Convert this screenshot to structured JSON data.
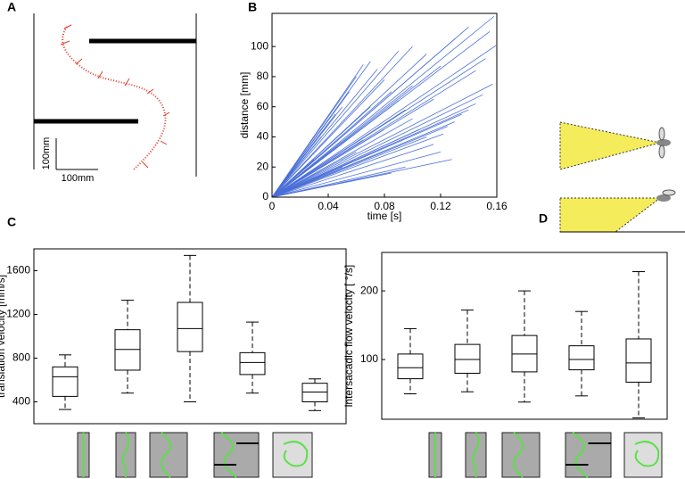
{
  "figure": {
    "panel_a": {
      "label": "A",
      "scale_y": "100mm",
      "scale_x": "100mm"
    }
  },
  "chart_data": [
    {
      "type": "line",
      "panel": "B",
      "x_label": "time [s]",
      "y_label": "distance [mm]",
      "color": "#4a6fd8",
      "xlim": [
        0,
        0.16
      ],
      "xticks": [
        0,
        0.04,
        0.08,
        0.12,
        0.16
      ],
      "ylim": [
        0,
        122
      ],
      "yticks": [
        0,
        20,
        40,
        60,
        80,
        100
      ],
      "series": [
        {
          "x": [
            0,
            0.158
          ],
          "values": [
            0,
            120
          ]
        },
        {
          "x": [
            0,
            0.155
          ],
          "values": [
            0,
            110
          ]
        },
        {
          "x": [
            0,
            0.16
          ],
          "values": [
            0,
            101
          ]
        },
        {
          "x": [
            0,
            0.152
          ],
          "values": [
            0,
            92
          ]
        },
        {
          "x": [
            0,
            0.157
          ],
          "values": [
            0,
            75
          ]
        },
        {
          "x": [
            0,
            0.15
          ],
          "values": [
            0,
            68
          ]
        },
        {
          "x": [
            0,
            0.145
          ],
          "values": [
            0,
            62
          ]
        },
        {
          "x": [
            0,
            0.14
          ],
          "values": [
            0,
            58
          ]
        },
        {
          "x": [
            0,
            0.135
          ],
          "values": [
            0,
            55
          ]
        },
        {
          "x": [
            0,
            0.13
          ],
          "values": [
            0,
            50
          ]
        },
        {
          "x": [
            0,
            0.125
          ],
          "values": [
            0,
            47
          ]
        },
        {
          "x": [
            0,
            0.122
          ],
          "values": [
            0,
            42
          ]
        },
        {
          "x": [
            0,
            0.128
          ],
          "values": [
            0,
            25
          ]
        },
        {
          "x": [
            0,
            0.12
          ],
          "values": [
            0,
            30
          ]
        },
        {
          "x": [
            0,
            0.115
          ],
          "values": [
            0,
            35
          ]
        },
        {
          "x": [
            0,
            0.11
          ],
          "values": [
            0,
            40
          ]
        },
        {
          "x": [
            0,
            0.105
          ],
          "values": [
            0,
            45
          ]
        },
        {
          "x": [
            0,
            0.1
          ],
          "values": [
            0,
            52
          ]
        },
        {
          "x": [
            0,
            0.095
          ],
          "values": [
            0,
            58
          ]
        },
        {
          "x": [
            0,
            0.09
          ],
          "values": [
            0,
            64
          ]
        },
        {
          "x": [
            0,
            0.085
          ],
          "values": [
            0,
            70
          ]
        },
        {
          "x": [
            0,
            0.08
          ],
          "values": [
            0,
            78
          ]
        },
        {
          "x": [
            0,
            0.075
          ],
          "values": [
            0,
            85
          ]
        },
        {
          "x": [
            0,
            0.07
          ],
          "values": [
            0,
            90
          ]
        },
        {
          "x": [
            0,
            0.065
          ],
          "values": [
            0,
            88
          ]
        },
        {
          "x": [
            0,
            0.06
          ],
          "values": [
            0,
            80
          ]
        },
        {
          "x": [
            0,
            0.055
          ],
          "values": [
            0,
            70
          ]
        },
        {
          "x": [
            0,
            0.05
          ],
          "values": [
            0,
            60
          ]
        },
        {
          "x": [
            0,
            0.045
          ],
          "values": [
            0,
            55
          ]
        },
        {
          "x": [
            0,
            0.04
          ],
          "values": [
            0,
            48
          ]
        },
        {
          "x": [
            0,
            0.1
          ],
          "values": [
            0,
            100
          ]
        },
        {
          "x": [
            0,
            0.11
          ],
          "values": [
            0,
            95
          ]
        },
        {
          "x": [
            0,
            0.12
          ],
          "values": [
            0,
            87
          ]
        },
        {
          "x": [
            0,
            0.09
          ],
          "values": [
            0,
            97
          ]
        },
        {
          "x": [
            0,
            0.13
          ],
          "values": [
            0,
            105
          ]
        },
        {
          "x": [
            0,
            0.14
          ],
          "values": [
            0,
            113
          ]
        },
        {
          "x": [
            0,
            0.07
          ],
          "values": [
            0,
            60
          ]
        },
        {
          "x": [
            0,
            0.095
          ],
          "values": [
            0,
            20
          ]
        },
        {
          "x": [
            0,
            0.085
          ],
          "values": [
            0,
            16
          ]
        },
        {
          "x": [
            0,
            0.06
          ],
          "values": [
            0,
            30
          ]
        },
        {
          "x": [
            0,
            0.05
          ],
          "values": [
            0,
            20
          ]
        },
        {
          "x": [
            0,
            0.03
          ],
          "values": [
            0,
            25
          ]
        },
        {
          "x": [
            0,
            0.035
          ],
          "values": [
            0,
            40
          ]
        },
        {
          "x": [
            0,
            0.145
          ],
          "values": [
            0,
            84
          ]
        },
        {
          "x": [
            0,
            0.115
          ],
          "values": [
            0,
            65
          ]
        },
        {
          "x": [
            0,
            0.1
          ],
          "values": [
            0,
            74
          ]
        },
        {
          "x": [
            0,
            0.08
          ],
          "values": [
            0,
            45
          ]
        },
        {
          "x": [
            0,
            0.065
          ],
          "values": [
            0,
            38
          ]
        }
      ]
    },
    {
      "type": "box",
      "panel": "C",
      "y_label": "translation velocity [mm/s]",
      "ylim": [
        200,
        1800
      ],
      "yticks": [
        400,
        800,
        1200,
        1600
      ],
      "categories": [
        null,
        null,
        null,
        null,
        null
      ],
      "boxes": [
        {
          "whislo": 330,
          "q1": 450,
          "med": 630,
          "q3": 720,
          "whishi": 830
        },
        {
          "whislo": 480,
          "q1": 690,
          "med": 880,
          "q3": 1060,
          "whishi": 1330
        },
        {
          "whislo": 400,
          "q1": 860,
          "med": 1070,
          "q3": 1310,
          "whishi": 1740
        },
        {
          "whislo": 480,
          "q1": 650,
          "med": 760,
          "q3": 850,
          "whishi": 1130
        },
        {
          "whislo": 320,
          "q1": 400,
          "med": 490,
          "q3": 570,
          "whishi": 610
        }
      ]
    },
    {
      "type": "box",
      "panel": "D",
      "y_label": "intersacadic flow velocity [ °/s]",
      "ylim": [
        13,
        256
      ],
      "yticks": [
        100,
        200
      ],
      "categories": [
        null,
        null,
        null,
        null,
        null
      ],
      "boxes": [
        {
          "whislo": 50,
          "q1": 72,
          "med": 88,
          "q3": 108,
          "whishi": 145
        },
        {
          "whislo": 53,
          "q1": 80,
          "med": 100,
          "q3": 122,
          "whishi": 172
        },
        {
          "whislo": 38,
          "q1": 82,
          "med": 108,
          "q3": 135,
          "whishi": 200
        },
        {
          "whislo": 47,
          "q1": 85,
          "med": 100,
          "q3": 120,
          "whishi": 170
        },
        {
          "whislo": 15,
          "q1": 67,
          "med": 95,
          "q3": 130,
          "whishi": 228
        }
      ]
    }
  ]
}
